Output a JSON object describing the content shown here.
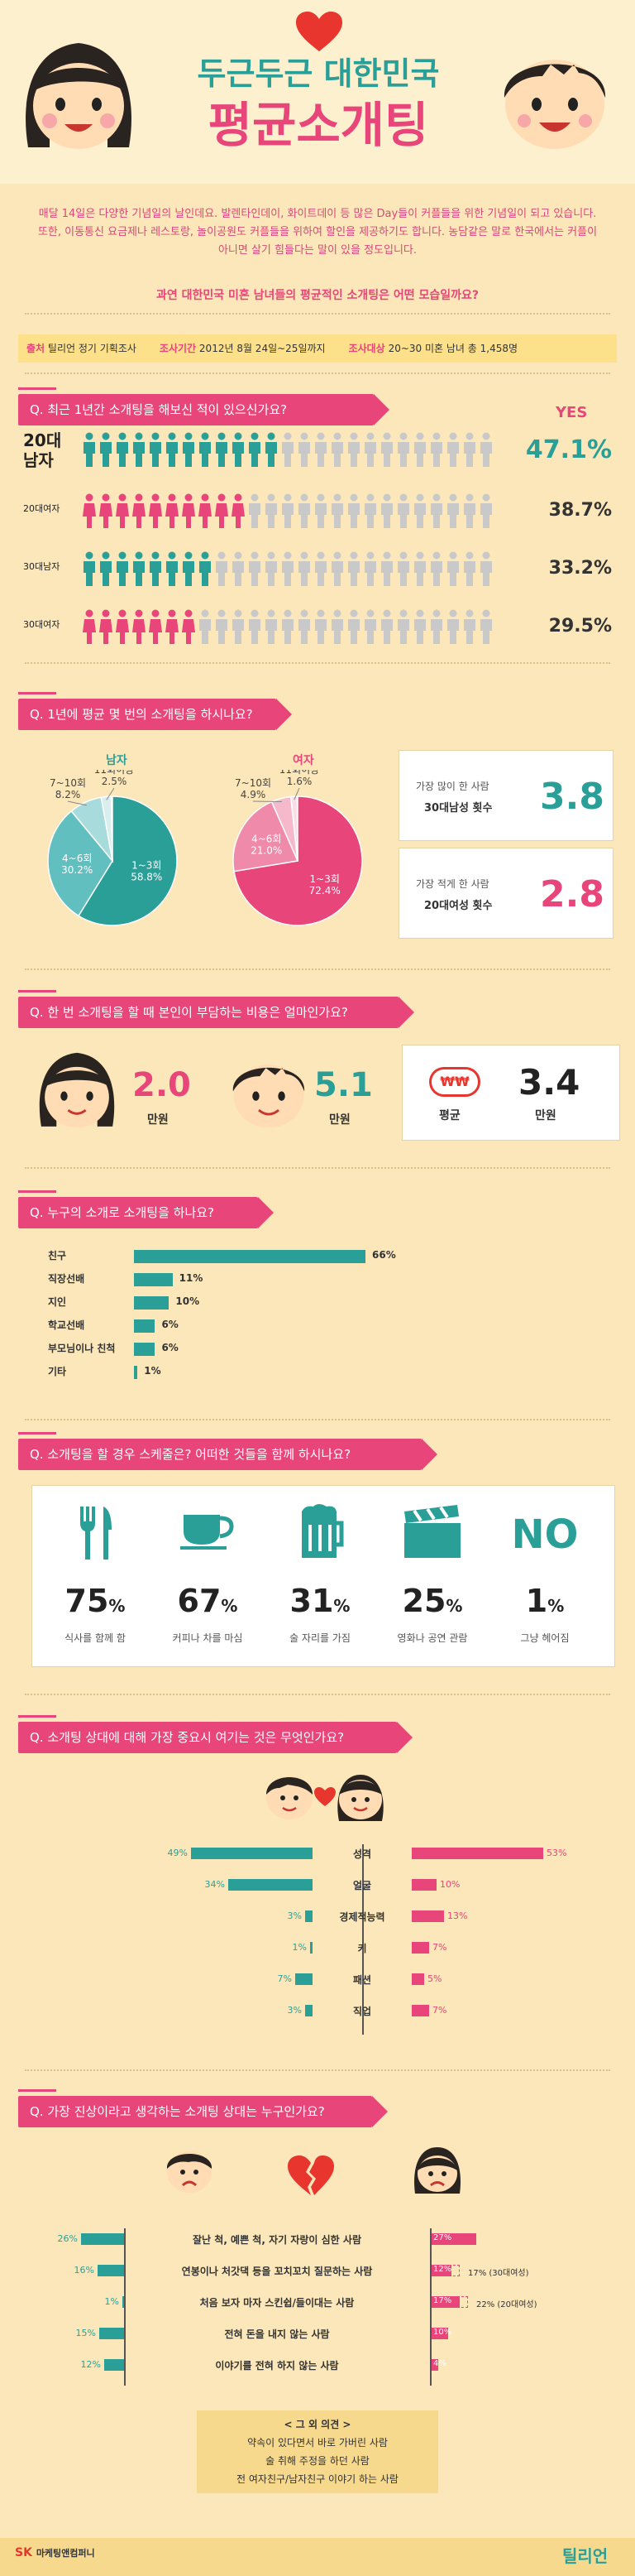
{
  "header": {
    "title_line1": "두근두근 대한민국",
    "title_line2": "평균소개팅",
    "intro": "매달 14일은 다양한 기념일의 날인데요. 발렌타인데이, 화이트데이 등 많은 Day들이 커플들을 위한 기념일이 되고 있습니다. 또한, 이동통신 요금제나 레스토랑, 놀이공원도 커플들을 위하여 할인을 제공하기도 합니다. 농담같은 말로 한국에서는 커플이 아니면 살기 힘들다는 말이 있을 정도입니다.",
    "question": "과연 대한민국 미혼 남녀들의 평균적인 소개팅은 어떤 모습일까요?"
  },
  "source": {
    "label1": "출처",
    "value1": "틸리언 정기 기획조사",
    "label2": "조사기간",
    "value2": "2012년 8월 24일~25일까지",
    "label3": "조사대상",
    "value3": "20~30 미혼 남녀 총 1,458명"
  },
  "q1": {
    "title": "Q. 최근 1년간 소개팅을 해보신 적이 있으신가요?",
    "yes": "YES",
    "rows": [
      {
        "label": "20대 남자",
        "pct": "47.1%",
        "value": 47.1,
        "color": "#2a9f98"
      },
      {
        "label": "20대여자",
        "pct": "38.7%",
        "value": 38.7,
        "color": "#e8457a"
      },
      {
        "label": "30대남자",
        "pct": "33.2%",
        "value": 33.2,
        "color": "#2a9f98"
      },
      {
        "label": "30대여자",
        "pct": "29.5%",
        "value": 29.5,
        "color": "#e8457a"
      }
    ]
  },
  "q2": {
    "title": "Q. 1년에 평균 몇 번의 소개팅을 하시나요?",
    "male": {
      "label": "남자",
      "slices": [
        {
          "name": "1~3회",
          "pct": "58.8%",
          "value": 58.8,
          "color": "#2a9f98"
        },
        {
          "name": "4~6회",
          "pct": "30.2%",
          "value": 30.2,
          "color": "#62bfc0"
        },
        {
          "name": "7~10회",
          "pct": "8.2%",
          "value": 8.2,
          "color": "#a8dbdc"
        },
        {
          "name": "11회이상",
          "pct": "2.5%",
          "value": 2.5,
          "color": "#d9eeee"
        }
      ]
    },
    "female": {
      "label": "여자",
      "slices": [
        {
          "name": "1~3회",
          "pct": "72.4%",
          "value": 72.4,
          "color": "#e8457a"
        },
        {
          "name": "4~6회",
          "pct": "21.0%",
          "value": 21.0,
          "color": "#f08aaa"
        },
        {
          "name": "7~10회",
          "pct": "4.9%",
          "value": 4.9,
          "color": "#f6b9cc"
        },
        {
          "name": "11회이상",
          "pct": "1.6%",
          "value": 1.6,
          "color": "#fbdde7"
        }
      ]
    },
    "most": {
      "line1": "가장 많이 한 사람",
      "line2": "30대남성 횟수",
      "value": "3.8"
    },
    "least": {
      "line1": "가장 적게 한 사람",
      "line2": "20대여성 횟수",
      "value": "2.8"
    }
  },
  "q3": {
    "title": "Q. 한 번 소개팅을 할 때 본인이 부담하는 비용은 얼마인가요?",
    "female_value": "2.0",
    "female_unit": "만원",
    "male_value": "5.1",
    "male_unit": "만원",
    "avg_icon": "₩₩",
    "avg_label": "평균",
    "avg_value": "3.4",
    "avg_unit": "만원"
  },
  "q4": {
    "title": "Q. 누구의 소개로 소개팅을 하나요?",
    "bars": [
      {
        "label": "친구",
        "pct": "66%",
        "value": 66
      },
      {
        "label": "직장선배",
        "pct": "11%",
        "value": 11
      },
      {
        "label": "지인",
        "pct": "10%",
        "value": 10
      },
      {
        "label": "학교선배",
        "pct": "6%",
        "value": 6
      },
      {
        "label": "부모님이나 친척",
        "pct": "6%",
        "value": 6
      },
      {
        "label": "기타",
        "pct": "1%",
        "value": 1
      }
    ]
  },
  "q5": {
    "title": "Q. 소개팅을 할 경우 스케줄은? 어떠한 것들을 함께 하시나요?",
    "items": [
      {
        "icon": "fork-knife-icon",
        "pct": "75",
        "sym": "%",
        "label": "식사를 함께 함"
      },
      {
        "icon": "coffee-cup-icon",
        "pct": "67",
        "sym": "%",
        "label": "커피나 차를 마심"
      },
      {
        "icon": "beer-mug-icon",
        "pct": "31",
        "sym": "%",
        "label": "술 자리를 가짐"
      },
      {
        "icon": "clapperboard-icon",
        "pct": "25",
        "sym": "%",
        "label": "영화나 공연 관람"
      },
      {
        "icon": "NO",
        "pct": "1",
        "sym": "%",
        "label": "그냥 헤어짐"
      }
    ]
  },
  "q6": {
    "title": "Q. 소개팅 상대에 대해 가장 중요시 여기는 것은 무엇인가요?",
    "rows": [
      {
        "label": "성격",
        "male": "49%",
        "mv": 49,
        "female": "53%",
        "fv": 53
      },
      {
        "label": "얼굴",
        "male": "34%",
        "mv": 34,
        "female": "10%",
        "fv": 10
      },
      {
        "label": "경제적능력",
        "male": "3%",
        "mv": 3,
        "female": "13%",
        "fv": 13
      },
      {
        "label": "키",
        "male": "1%",
        "mv": 1,
        "female": "7%",
        "fv": 7
      },
      {
        "label": "패션",
        "male": "7%",
        "mv": 7,
        "female": "5%",
        "fv": 5
      },
      {
        "label": "직업",
        "male": "3%",
        "mv": 3,
        "female": "7%",
        "fv": 7
      }
    ]
  },
  "q7": {
    "title": "Q. 가장 진상이라고 생각하는 소개팅 상대는 누구인가요?",
    "rows": [
      {
        "label": "잘난 척, 예쁜 척, 자기 자랑이 심한 사람",
        "male": "26%",
        "mv": 26,
        "female": "27%",
        "fv": 27,
        "note": ""
      },
      {
        "label": "연봉이나 처갓댁 등을 꼬치꼬치 질문하는 사람",
        "male": "16%",
        "mv": 16,
        "female": "12%",
        "fv": 12,
        "note": "17% (30대여성)",
        "nv": 17
      },
      {
        "label": "처음 보자 마자 스킨쉽/들이대는 사람",
        "male": "1%",
        "mv": 1,
        "female": "17%",
        "fv": 17,
        "note": "22% (20대여성)",
        "nv": 22
      },
      {
        "label": "전혀 돈을 내지 않는 사람",
        "male": "15%",
        "mv": 15,
        "female": "10%",
        "fv": 10,
        "note": ""
      },
      {
        "label": "이야기를 전혀 하지 않는 사람",
        "male": "12%",
        "mv": 12,
        "female": "4%",
        "fv": 4,
        "note": ""
      }
    ],
    "others_title": "< 그 외 의견 >",
    "others": [
      "약속이 있다면서 바로 가버린 사람",
      "술 취해 주정을 하던 사람",
      "전 여자친구/남자친구 이야기 하는 사람"
    ]
  },
  "footer": {
    "sk": "SK",
    "company": "마케팅앤컴퍼니",
    "brand": "틸리언"
  }
}
